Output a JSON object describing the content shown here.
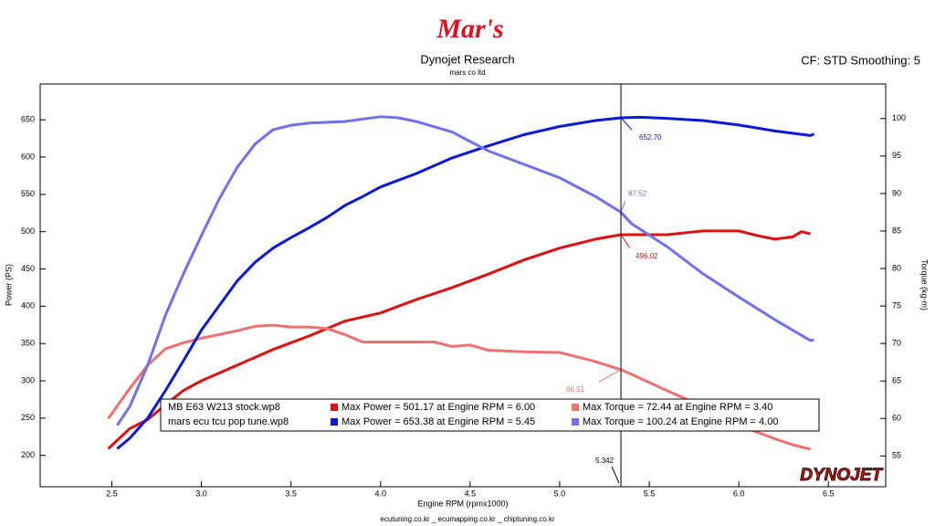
{
  "chart_data": {
    "type": "line",
    "logo": "Mar's",
    "title": "Dynojet Research",
    "subtitle": "mars co ltd",
    "settings_label": "CF: STD Smoothing: 5",
    "xlabel": "Engine RPM (rpmx1000)",
    "ylabel": "Power (PS)",
    "y2label": "Torque (kg-m)",
    "footer": "ecutuning.co.kr _ ecumapping.co.kr _ chiptuning.co.kr",
    "brand": "DYNOJET",
    "xlim": [
      2.1,
      6.82
    ],
    "xticks": [
      2.5,
      {
        "value": 3,
        "label": "3.0"
      },
      3.5,
      {
        "value": 4,
        "label": "4.0"
      },
      4.5,
      {
        "value": 5,
        "label": "5.0"
      },
      5.5,
      {
        "value": 6,
        "label": "6.0"
      },
      6.5
    ],
    "ylim": [
      158,
      698
    ],
    "yticks": [
      200,
      250,
      300,
      350,
      400,
      450,
      500,
      550,
      600,
      650
    ],
    "y2lim": [
      50.9,
      104.6
    ],
    "y2ticks": [
      55,
      60,
      65,
      70,
      75,
      80,
      85,
      90,
      95,
      100
    ],
    "legend_files": [
      "MB E63 W213 stock.wp8",
      "mars ecu tcu pop tune.wp8"
    ],
    "series": [
      {
        "name": "Max Power = 501.17 at Engine RPM = 6.00",
        "color": "#e01010",
        "x": [
          2.48,
          2.6,
          2.7,
          2.8,
          2.9,
          3.0,
          3.2,
          3.4,
          3.6,
          3.8,
          4.0,
          4.2,
          4.4,
          4.6,
          4.8,
          5.0,
          5.2,
          5.342,
          5.4,
          5.6,
          5.8,
          6.0,
          6.1,
          6.2,
          6.3,
          6.35,
          6.4
        ],
        "values": [
          209,
          236,
          248,
          268,
          287,
          300,
          321,
          342,
          360,
          380,
          391,
          409,
          425,
          443,
          462,
          478,
          490,
          496.02,
          496,
          496,
          501,
          501,
          495,
          490,
          493,
          500,
          497
        ]
      },
      {
        "name": "Max Torque = 72.44 at Engine RPM = 3.40",
        "color": "#f07070",
        "axis": "y2",
        "x": [
          2.48,
          2.6,
          2.7,
          2.8,
          2.9,
          3.0,
          3.1,
          3.2,
          3.3,
          3.4,
          3.5,
          3.6,
          3.7,
          3.8,
          3.9,
          4.0,
          4.2,
          4.3,
          4.4,
          4.5,
          4.6,
          4.8,
          5.0,
          5.1,
          5.2,
          5.342,
          5.4,
          5.6,
          5.8,
          6.0,
          6.2,
          6.3,
          6.4
        ],
        "values": [
          60.0,
          64.0,
          67.1,
          69.3,
          70.1,
          70.7,
          71.2,
          71.7,
          72.3,
          72.44,
          72.2,
          72.2,
          72.0,
          71.2,
          70.2,
          70.2,
          70.2,
          70.2,
          69.6,
          69.8,
          69.1,
          68.9,
          68.8,
          68.2,
          67.6,
          66.51,
          65.9,
          63.7,
          61.6,
          59.1,
          57.3,
          56.5,
          55.9
        ]
      },
      {
        "name": "Max Power = 653.38 at Engine RPM = 5.45",
        "color": "#0a1ad8",
        "x": [
          2.53,
          2.6,
          2.7,
          2.8,
          2.9,
          3.0,
          3.1,
          3.2,
          3.3,
          3.4,
          3.5,
          3.6,
          3.7,
          3.8,
          3.9,
          4.0,
          4.2,
          4.4,
          4.6,
          4.8,
          5.0,
          5.2,
          5.342,
          5.45,
          5.6,
          5.8,
          6.0,
          6.2,
          6.4,
          6.42
        ],
        "values": [
          209,
          223,
          250,
          287,
          327,
          368,
          401,
          434,
          459,
          478,
          492,
          505,
          519,
          535,
          547,
          560,
          578,
          599,
          615,
          630,
          641,
          649,
          652.7,
          653.38,
          652,
          649,
          643,
          635,
          629,
          631
        ]
      },
      {
        "name": "Max Torque = 100.24 at Engine RPM = 4.00",
        "color": "#7070f0",
        "axis": "y2",
        "x": [
          2.53,
          2.6,
          2.7,
          2.8,
          2.9,
          3.0,
          3.1,
          3.2,
          3.3,
          3.4,
          3.5,
          3.6,
          3.8,
          4.0,
          4.1,
          4.2,
          4.4,
          4.6,
          4.8,
          5.0,
          5.2,
          5.342,
          5.4,
          5.6,
          5.8,
          6.0,
          6.2,
          6.4,
          6.42
        ],
        "values": [
          59.1,
          61.6,
          67.1,
          73.8,
          79.3,
          84.4,
          89.3,
          93.5,
          96.6,
          98.5,
          99.1,
          99.4,
          99.6,
          100.24,
          100.1,
          99.6,
          98.2,
          95.7,
          93.9,
          92.1,
          89.6,
          87.52,
          86.0,
          82.9,
          79.3,
          76.2,
          73.2,
          70.4,
          70.5
        ]
      }
    ],
    "cursor": {
      "x": 5.342,
      "values": [
        496.02,
        66.51,
        652.7,
        87.52
      ],
      "value_labels": [
        "496.02",
        "66.51",
        "652.70",
        "87.52"
      ]
    }
  }
}
